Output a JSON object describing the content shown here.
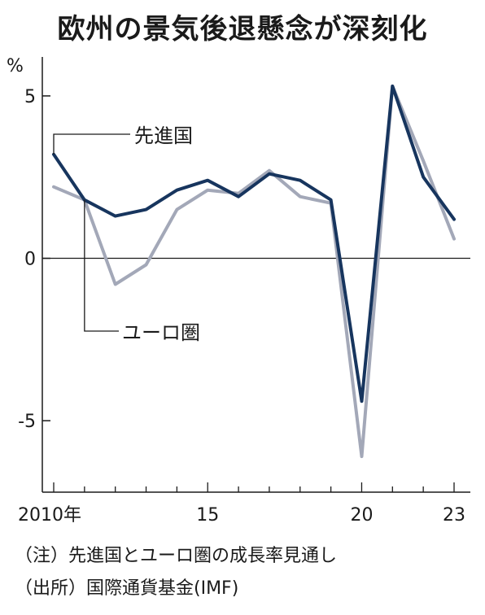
{
  "title": "欧州の景気後退懸念が深刻化",
  "notes": [
    "（注）先進国とユーロ圏の成長率見通し",
    "（出所）国際通貨基金(IMF)"
  ],
  "colors": {
    "advanced": "#17355e",
    "euro": "#a3a8b8",
    "axis": "#1a1a1a"
  },
  "chart_data": {
    "type": "line",
    "unit": "%",
    "x": [
      2010,
      2011,
      2012,
      2013,
      2014,
      2015,
      2016,
      2017,
      2018,
      2019,
      2020,
      2021,
      2022,
      2023
    ],
    "xticks": [
      2010,
      2015,
      2020,
      2023
    ],
    "xtick_labels": [
      "2010年",
      "15",
      "20",
      "23"
    ],
    "yticks": [
      5,
      0,
      -5
    ],
    "ytick_labels": [
      "5",
      "0",
      "-5"
    ],
    "ylim": [
      -7.2,
      6.2
    ],
    "xlim": [
      2010,
      2023
    ],
    "series": [
      {
        "name": "先進国",
        "values": [
          3.2,
          1.8,
          1.3,
          1.5,
          2.1,
          2.4,
          1.9,
          2.6,
          2.4,
          1.8,
          -4.4,
          5.3,
          2.5,
          1.2
        ]
      },
      {
        "name": "ユーロ圏",
        "values": [
          2.2,
          1.8,
          -0.8,
          -0.2,
          1.5,
          2.1,
          2.0,
          2.7,
          1.9,
          1.7,
          -6.1,
          5.3,
          3.0,
          0.6
        ]
      }
    ]
  }
}
